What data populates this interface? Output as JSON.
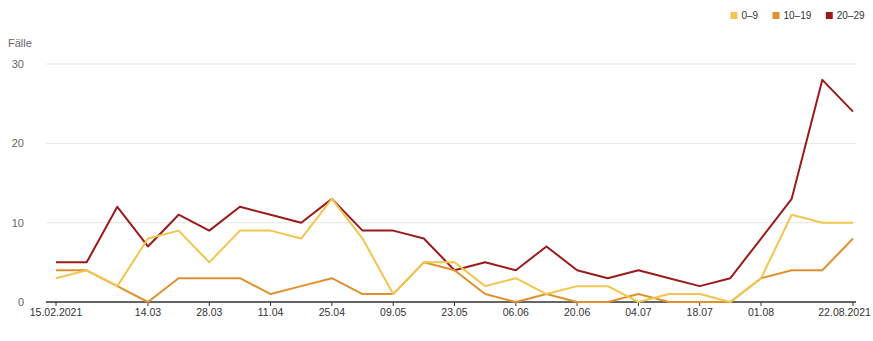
{
  "chart_data": {
    "type": "line",
    "y_label": "Fälle",
    "categories": [
      "15.02.2021",
      null,
      null,
      "14.03",
      null,
      "28.03",
      null,
      "11.04",
      null,
      "25.04",
      null,
      "09.05",
      null,
      "23.05",
      null,
      "06.06",
      null,
      "20.06",
      null,
      "04.07",
      null,
      "18.07",
      null,
      "01.08",
      null,
      null,
      "22.08.2021"
    ],
    "series": [
      {
        "name": "0–9",
        "color": "#f2c54e",
        "values": [
          3,
          4,
          2,
          8,
          9,
          5,
          9,
          9,
          8,
          13,
          8,
          1,
          5,
          5,
          2,
          3,
          1,
          2,
          2,
          0,
          1,
          1,
          0,
          3,
          11,
          10,
          10
        ]
      },
      {
        "name": "10–19",
        "color": "#e0912f",
        "values": [
          4,
          4,
          2,
          0,
          3,
          3,
          3,
          1,
          2,
          3,
          1,
          1,
          5,
          4,
          1,
          0,
          1,
          0,
          0,
          1,
          0,
          0,
          0,
          3,
          4,
          4,
          8
        ]
      },
      {
        "name": "20–29",
        "color": "#9a1b1b",
        "values": [
          5,
          5,
          12,
          7,
          11,
          9,
          12,
          11,
          10,
          13,
          9,
          9,
          8,
          4,
          5,
          4,
          7,
          4,
          3,
          4,
          3,
          2,
          3,
          8,
          13,
          28,
          24
        ]
      }
    ],
    "ylim": [
      0,
      30
    ],
    "yticks": [
      0,
      10,
      20,
      30
    ],
    "grid": true,
    "legend": "top-right"
  }
}
